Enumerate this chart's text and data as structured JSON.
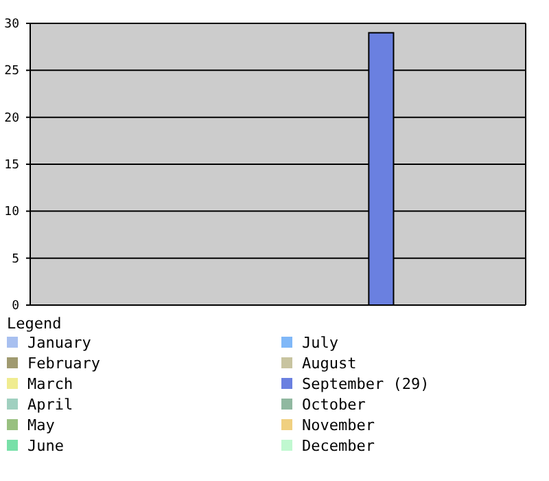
{
  "chart_data": {
    "type": "bar",
    "categories": [
      null
    ],
    "legend_title": "Legend",
    "legend": "bottom",
    "grid": "y",
    "ylim": [
      0,
      30
    ],
    "yticks": [
      0,
      5,
      10,
      15,
      20,
      25,
      30
    ],
    "series": [
      {
        "name": "January",
        "color": "#a8c0f0",
        "values": [
          0
        ]
      },
      {
        "name": "February",
        "color": "#a09a70",
        "values": [
          0
        ]
      },
      {
        "name": "March",
        "color": "#f0ec90",
        "values": [
          0
        ]
      },
      {
        "name": "April",
        "color": "#a0d0c0",
        "values": [
          0
        ]
      },
      {
        "name": "May",
        "color": "#98c080",
        "values": [
          0
        ]
      },
      {
        "name": "June",
        "color": "#78e0a8",
        "values": [
          0
        ]
      },
      {
        "name": "July",
        "color": "#80b8f8",
        "values": [
          0
        ]
      },
      {
        "name": "August",
        "color": "#c8c4a0",
        "values": [
          0
        ]
      },
      {
        "name": "September (29)",
        "color": "#6a80e0",
        "values": [
          29
        ]
      },
      {
        "name": "October",
        "color": "#90b8a0",
        "values": [
          0
        ]
      },
      {
        "name": "November",
        "color": "#f0d080",
        "values": [
          0
        ]
      },
      {
        "name": "December",
        "color": "#c0f8d0",
        "values": [
          0
        ]
      }
    ]
  }
}
